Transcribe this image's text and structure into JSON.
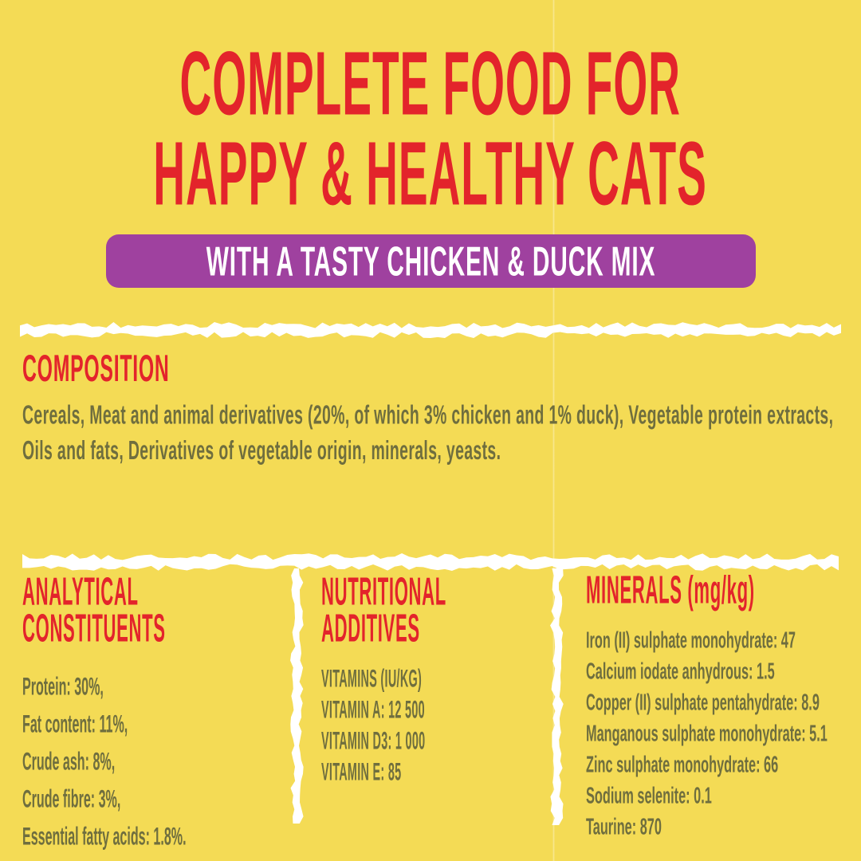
{
  "colors": {
    "background": "#F4DB55",
    "red": "#E3242B",
    "purple": "#9F419F",
    "olive": "#6F6E3E",
    "banner_text": "#FFFFFF"
  },
  "header": {
    "title_line1": "COMPLETE FOOD FOR",
    "title_line2": "HAPPY & HEALTHY CATS",
    "banner_text": "WITH A TASTY CHICKEN & DUCK MIX"
  },
  "composition": {
    "heading": "COMPOSITION",
    "text": "Cereals, Meat and animal derivatives (20%, of which 3% chicken and 1% duck), Vegetable protein extracts, Oils and fats, Derivatives of vegetable origin, minerals, yeasts."
  },
  "analytical": {
    "heading_line1": "ANALYTICAL",
    "heading_line2": "CONSTITUENTS",
    "items": [
      "Protein: 30%,",
      "Fat content: 11%,",
      "Crude ash: 8%,",
      "Crude fibre: 3%,",
      "Essential fatty acids: 1.8%."
    ]
  },
  "nutritional": {
    "heading_line1": "NUTRITIONAL",
    "heading_line2": "ADDITIVES",
    "items": [
      "VITAMINS (IU/KG)",
      "VITAMIN A: 12 500",
      "VITAMIN D3: 1 000",
      "VITAMIN E: 85"
    ]
  },
  "minerals": {
    "heading": "MINERALS (mg/kg)",
    "items": [
      "Iron (II) sulphate monohydrate: 47",
      "Calcium iodate anhydrous: 1.5",
      "Copper (II) sulphate pentahydrate: 8.9",
      "Manganous sulphate monohydrate: 5.1",
      "Zinc sulphate monohydrate: 66",
      "Sodium selenite: 0.1",
      "Taurine: 870"
    ]
  }
}
